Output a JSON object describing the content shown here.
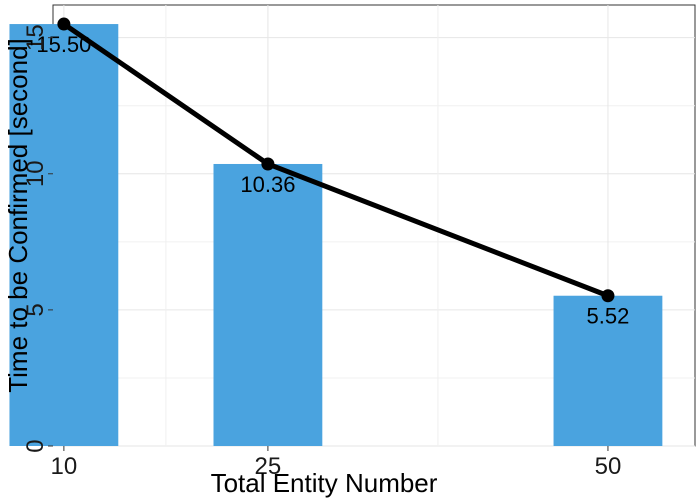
{
  "chart_data": {
    "type": "bar",
    "x": [
      10,
      25,
      50
    ],
    "x_tick_labels": [
      "10",
      "25",
      "50"
    ],
    "values": [
      15.5,
      10.36,
      5.52
    ],
    "data_labels": [
      "15.50",
      "10.36",
      "5.52"
    ],
    "line_overlay": true,
    "xlabel": "Total Entity Number",
    "ylabel": "Time to be Confirmed [second]",
    "y_ticks": [
      0,
      5,
      10,
      15
    ],
    "y_tick_labels": [
      "0",
      "5",
      "10",
      "15"
    ],
    "ylim": [
      0,
      16.2
    ],
    "xlim": [
      9.2,
      56.4
    ],
    "bar_width_data": 8,
    "grid": true,
    "legend": "none",
    "colors": {
      "bar": "#4aa3df",
      "line": "#000000",
      "grid": "#e6e6e6",
      "panel_border": "#333333"
    }
  }
}
